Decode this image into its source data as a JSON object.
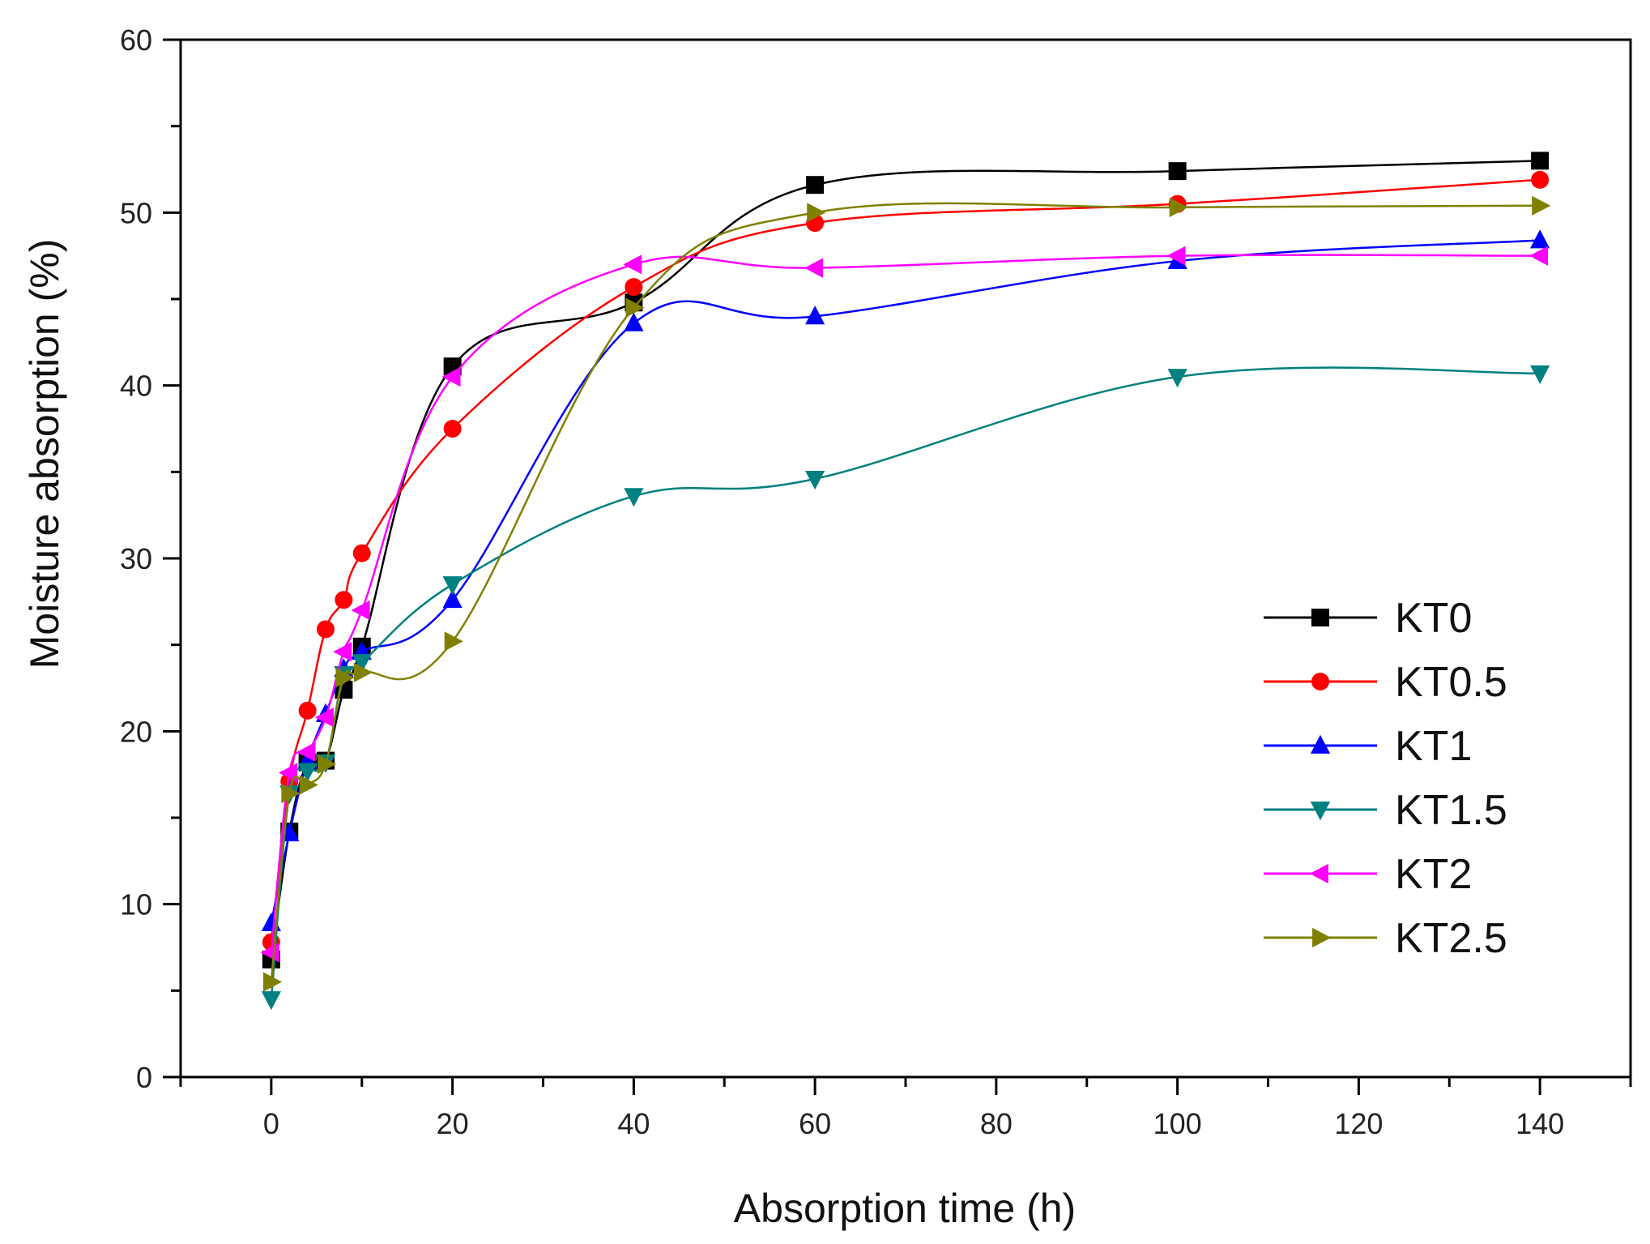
{
  "chart_data": {
    "type": "line",
    "title": "",
    "xlabel": "Absorption time (h)",
    "ylabel": "Moisture absorption (%)",
    "xlim": [
      -10,
      150
    ],
    "ylim": [
      0,
      60
    ],
    "xticks": [
      0,
      20,
      40,
      60,
      80,
      100,
      120,
      140
    ],
    "yticks": [
      0,
      10,
      20,
      30,
      40,
      50,
      60
    ],
    "x_tick_labels": [
      "0",
      "20",
      "40",
      "60",
      "80",
      "100",
      "120",
      "140"
    ],
    "y_tick_labels": [
      "0",
      "10",
      "20",
      "30",
      "40",
      "50",
      "60"
    ],
    "grid": false,
    "legend_position": "center-right",
    "x": [
      0,
      2,
      4,
      6,
      8,
      10,
      20,
      40,
      60,
      100,
      140
    ],
    "series": [
      {
        "name": "KT0",
        "color": "#000000",
        "marker": "square",
        "values": [
          6.8,
          14.2,
          18.2,
          18.3,
          22.4,
          24.9,
          41.1,
          44.8,
          51.6,
          52.4,
          53.0
        ]
      },
      {
        "name": "KT0.5",
        "color": "#ff0000",
        "marker": "circle",
        "values": [
          7.8,
          17.1,
          21.2,
          25.9,
          27.6,
          30.3,
          37.5,
          45.7,
          49.4,
          50.5,
          51.9
        ]
      },
      {
        "name": "KT1",
        "color": "#0000ff",
        "marker": "triangle-up",
        "values": [
          8.9,
          14.1,
          18.3,
          21.0,
          23.6,
          24.6,
          27.6,
          43.6,
          44.0,
          47.2,
          48.4
        ]
      },
      {
        "name": "KT1.5",
        "color": "#008080",
        "marker": "triangle-down",
        "values": [
          4.5,
          16.4,
          17.7,
          18.2,
          23.3,
          24.0,
          28.5,
          33.6,
          34.6,
          40.5,
          40.7
        ]
      },
      {
        "name": "KT2",
        "color": "#ff00ff",
        "marker": "triangle-left",
        "values": [
          7.2,
          17.6,
          18.8,
          20.8,
          24.6,
          27.0,
          40.5,
          47.0,
          46.8,
          47.5,
          47.5
        ]
      },
      {
        "name": "KT2.5",
        "color": "#808000",
        "marker": "triangle-right",
        "values": [
          5.5,
          16.4,
          16.9,
          18.1,
          23.1,
          23.4,
          25.2,
          44.5,
          50.0,
          50.3,
          50.4
        ]
      }
    ]
  }
}
